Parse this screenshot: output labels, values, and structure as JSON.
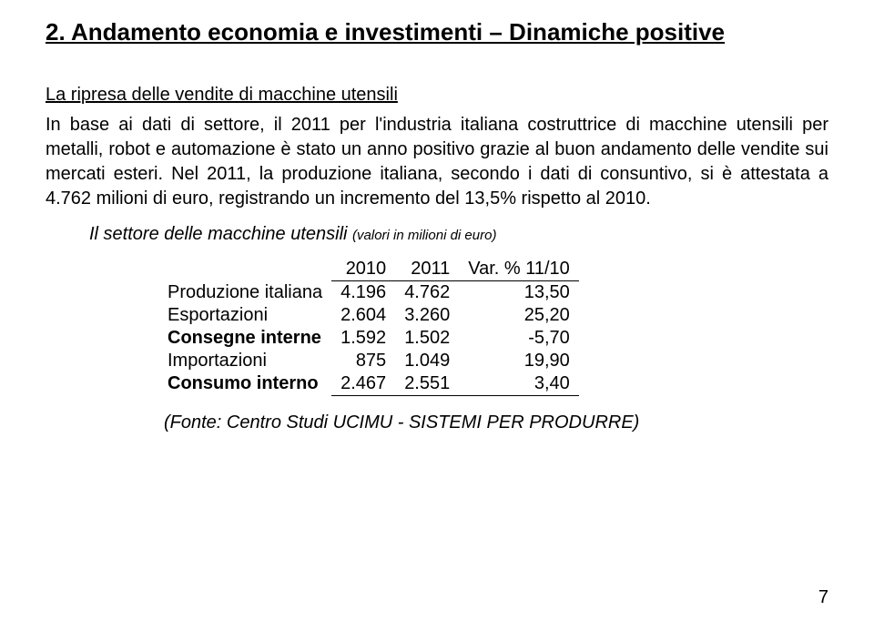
{
  "title": "2. Andamento economia e investimenti – Dinamiche positive",
  "subtitle": "La ripresa delle vendite di macchine utensili",
  "body": "In base ai dati di settore, il 2011 per l'industria italiana costruttrice di macchine utensili per metalli, robot e automazione è stato un anno positivo grazie al buon andamento delle vendite sui mercati esteri. Nel 2011, la produzione italiana, secondo i dati di consuntivo, si è attestata a 4.762 milioni di euro, registrando un incremento del 13,5% rispetto al 2010.",
  "table_caption_main": "Il settore delle macchine utensili  ",
  "table_caption_small": "(valori in milioni di euro)",
  "columns": {
    "c1": "2010",
    "c2": "2011",
    "c3": "Var. % 11/10"
  },
  "rows": [
    {
      "label": "Produzione italiana",
      "c1": "4.196",
      "c2": "4.762",
      "c3": "13,50",
      "bold": false
    },
    {
      "label": "Esportazioni",
      "c1": "2.604",
      "c2": "3.260",
      "c3": "25,20",
      "bold": false
    },
    {
      "label": "Consegne interne",
      "c1": "1.592",
      "c2": "1.502",
      "c3": "-5,70",
      "bold": true
    },
    {
      "label": "Importazioni",
      "c1": "875",
      "c2": "1.049",
      "c3": "19,90",
      "bold": false
    },
    {
      "label": "Consumo interno",
      "c1": "2.467",
      "c2": "2.551",
      "c3": "3,40",
      "bold": true
    }
  ],
  "source": "(Fonte: Centro Studi UCIMU - SISTEMI PER PRODURRE)",
  "pagenum": "7"
}
